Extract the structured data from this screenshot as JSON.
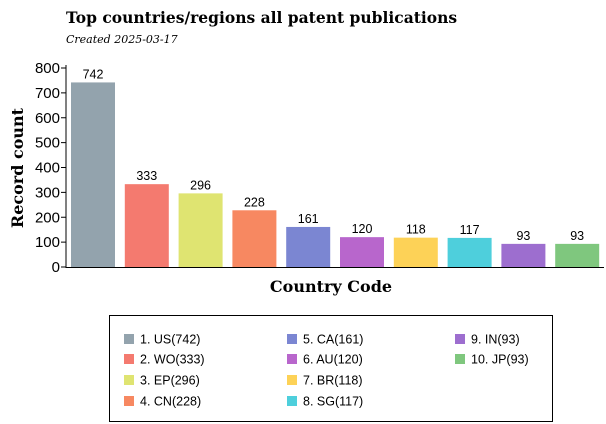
{
  "chart_data": {
    "type": "bar",
    "title": "Top countries/regions all patent publications",
    "subtitle": "Created 2025-03-17",
    "xlabel": "Country Code",
    "ylabel": "Record count",
    "ylim": [
      0,
      800
    ],
    "yticks": [
      0,
      100,
      200,
      300,
      400,
      500,
      600,
      700,
      800
    ],
    "grid": false,
    "legend_position": "bottom",
    "categories": [
      "US",
      "WO",
      "EP",
      "CN",
      "CA",
      "AU",
      "BR",
      "SG",
      "IN",
      "JP"
    ],
    "values": [
      742,
      333,
      296,
      228,
      161,
      120,
      118,
      117,
      93,
      93
    ],
    "data_labels": [
      "742",
      "333",
      "296",
      "228",
      "161",
      "120",
      "118",
      "117",
      "93",
      "93"
    ],
    "colors": [
      "#93a3ad",
      "#f47a6f",
      "#dfe471",
      "#f78861",
      "#7b86d2",
      "#b866cc",
      "#fdd257",
      "#4ecfdc",
      "#9d6ecf",
      "#7fc77e"
    ],
    "legend_entries": [
      "1. US(742)",
      "2. WO(333)",
      "3. EP(296)",
      "4. CN(228)",
      "5. CA(161)",
      "6. AU(120)",
      "7. BR(118)",
      "8. SG(117)",
      "9. IN(93)",
      "10. JP(93)"
    ]
  }
}
